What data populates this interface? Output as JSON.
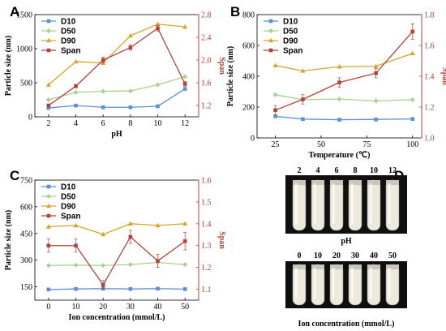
{
  "colors": {
    "D10": "#5b8fd6",
    "D50": "#a9d18e",
    "D90": "#d4a72c",
    "Span": "#b5413a",
    "left_axis": "#000000",
    "right_axis": "#b5413a"
  },
  "photos": {
    "top": {
      "letter": "D",
      "labels": [
        "2",
        "4",
        "6",
        "8",
        "10",
        "12"
      ],
      "caption": "pH"
    },
    "bottom": {
      "labels": [
        "0",
        "10",
        "20",
        "30",
        "40",
        "50"
      ],
      "caption": "Ion concentration (mmol/L)"
    }
  },
  "chart_data": [
    {
      "panel": "A",
      "type": "line",
      "xlabel": "pH",
      "ylabel": "Particle size (nm)",
      "y2label": "Span",
      "x": [
        2,
        4,
        6,
        8,
        10,
        12
      ],
      "xlim": [
        1,
        13
      ],
      "xticks": [
        "2",
        "4",
        "6",
        "8",
        "10",
        "12"
      ],
      "ylim": [
        0,
        1500
      ],
      "yticks": [
        "0",
        "500",
        "1000",
        "1500"
      ],
      "y2lim": [
        1.0,
        2.8
      ],
      "y2ticks": [
        "1.2",
        "1.6",
        "2.0",
        "2.4",
        "2.8"
      ],
      "legend": "top-left",
      "series": [
        {
          "name": "D10",
          "axis": "left",
          "values": [
            130,
            165,
            140,
            140,
            155,
            410
          ]
        },
        {
          "name": "D50",
          "axis": "left",
          "values": [
            250,
            360,
            375,
            380,
            470,
            590
          ]
        },
        {
          "name": "D90",
          "axis": "left",
          "values": [
            470,
            810,
            790,
            1190,
            1360,
            1320
          ]
        },
        {
          "name": "Span",
          "axis": "right",
          "values": [
            1.2,
            1.54,
            2.0,
            2.22,
            2.56,
            1.58
          ],
          "err": [
            0.02,
            0.03,
            0.05,
            0.05,
            0.05,
            0.04
          ]
        }
      ]
    },
    {
      "panel": "B",
      "type": "line",
      "xlabel": "Temperature (℃)",
      "ylabel": "Particle size (nm)",
      "y2label": "Span",
      "x": [
        25,
        40,
        60,
        80,
        100
      ],
      "xlim": [
        15,
        105
      ],
      "xticks": [
        "25",
        "50",
        "75",
        "100"
      ],
      "xtick_values": [
        25,
        50,
        75,
        100
      ],
      "ylim": [
        0,
        800
      ],
      "yticks": [
        "0",
        "200",
        "400",
        "600",
        "800"
      ],
      "y2lim": [
        1.0,
        1.8
      ],
      "y2ticks": [
        "1.0",
        "1.2",
        "1.4",
        "1.6",
        "1.8"
      ],
      "legend": "top-left",
      "series": [
        {
          "name": "D10",
          "axis": "left",
          "values": [
            140,
            122,
            118,
            120,
            123
          ]
        },
        {
          "name": "D50",
          "axis": "left",
          "values": [
            280,
            248,
            252,
            240,
            248
          ]
        },
        {
          "name": "D90",
          "axis": "left",
          "values": [
            470,
            435,
            462,
            465,
            548
          ]
        },
        {
          "name": "Span",
          "axis": "right",
          "values": [
            1.18,
            1.25,
            1.36,
            1.42,
            1.69
          ],
          "err": [
            0.03,
            0.03,
            0.03,
            0.03,
            0.05
          ]
        }
      ]
    },
    {
      "panel": "C",
      "type": "line",
      "xlabel": "Ion concentration (mmol/L)",
      "ylabel": "Particle size (nm)",
      "y2label": "Span",
      "x": [
        0,
        10,
        20,
        30,
        40,
        50
      ],
      "xlim": [
        -5,
        55
      ],
      "xticks": [
        "0",
        "10",
        "20",
        "30",
        "40",
        "50"
      ],
      "ylim": [
        75,
        750
      ],
      "yticks": [
        "150",
        "300",
        "450",
        "600",
        "750"
      ],
      "ytick_values": [
        150,
        300,
        450,
        600,
        750
      ],
      "y2lim": [
        1.05,
        1.6
      ],
      "y2ticks": [
        "1.1",
        "1.2",
        "1.3",
        "1.4",
        "1.5",
        "1.6"
      ],
      "legend": "top-left",
      "series": [
        {
          "name": "D10",
          "axis": "left",
          "values": [
            135,
            138,
            140,
            138,
            140,
            137
          ]
        },
        {
          "name": "D50",
          "axis": "left",
          "values": [
            270,
            272,
            270,
            275,
            287,
            275
          ]
        },
        {
          "name": "D90",
          "axis": "left",
          "values": [
            488,
            495,
            445,
            505,
            495,
            505
          ]
        },
        {
          "name": "Span",
          "axis": "right",
          "values": [
            1.3,
            1.3,
            1.12,
            1.34,
            1.23,
            1.32
          ],
          "err": [
            0.03,
            0.03,
            0.02,
            0.03,
            0.03,
            0.04
          ]
        }
      ]
    }
  ]
}
